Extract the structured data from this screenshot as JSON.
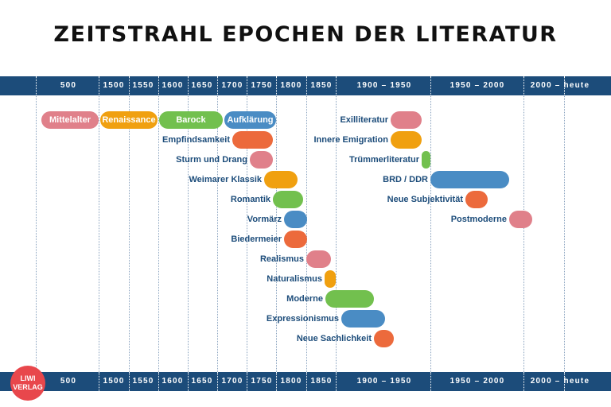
{
  "title": "ZEITSTRAHL EPOCHEN DER LITERATUR",
  "logo": {
    "line1": "LIWI",
    "line2": "VERLAG"
  },
  "axis_labels": [
    "500",
    "1500",
    "1550",
    "1600",
    "1650",
    "1700",
    "1750",
    "1800",
    "1850",
    "1900 – 1950",
    "1950 – 2000",
    "2000 – heute"
  ],
  "colors": {
    "navy": "#1c4c7a",
    "pink": "#e0808a",
    "orange": "#f0a010",
    "green": "#72c04e",
    "red": "#ec6a3c",
    "blue": "#4a8cc4",
    "logo": "#e8474c"
  },
  "epochs": [
    {
      "name": "Mittelalter",
      "color": "pink",
      "label_inside": true
    },
    {
      "name": "Renaissance",
      "color": "orange",
      "label_inside": true
    },
    {
      "name": "Barock",
      "color": "green",
      "label_inside": true
    },
    {
      "name": "Aufklärung",
      "color": "blue",
      "label_inside": true
    },
    {
      "name": "Empfindsamkeit",
      "color": "red",
      "label_inside": false
    },
    {
      "name": "Sturm und Drang",
      "color": "pink",
      "label_inside": false
    },
    {
      "name": "Weimarer Klassik",
      "color": "orange",
      "label_inside": false
    },
    {
      "name": "Romantik",
      "color": "green",
      "label_inside": false
    },
    {
      "name": "Vormärz",
      "color": "blue",
      "label_inside": false
    },
    {
      "name": "Biedermeier",
      "color": "red",
      "label_inside": false
    },
    {
      "name": "Realismus",
      "color": "pink",
      "label_inside": false
    },
    {
      "name": "Naturalismus",
      "color": "orange",
      "label_inside": false
    },
    {
      "name": "Moderne",
      "color": "green",
      "label_inside": false
    },
    {
      "name": "Expressionismus",
      "color": "blue",
      "label_inside": false
    },
    {
      "name": "Neue Sachlichkeit",
      "color": "red",
      "label_inside": false
    },
    {
      "name": "Exilliteratur",
      "color": "pink",
      "label_inside": false
    },
    {
      "name": "Innere Emigration",
      "color": "orange",
      "label_inside": false
    },
    {
      "name": "Trümmerliteratur",
      "color": "green",
      "label_inside": false
    },
    {
      "name": "BRD / DDR",
      "color": "blue",
      "label_inside": false
    },
    {
      "name": "Neue Subjektivität",
      "color": "red",
      "label_inside": false
    },
    {
      "name": "Postmoderne",
      "color": "pink",
      "label_inside": false
    }
  ]
}
